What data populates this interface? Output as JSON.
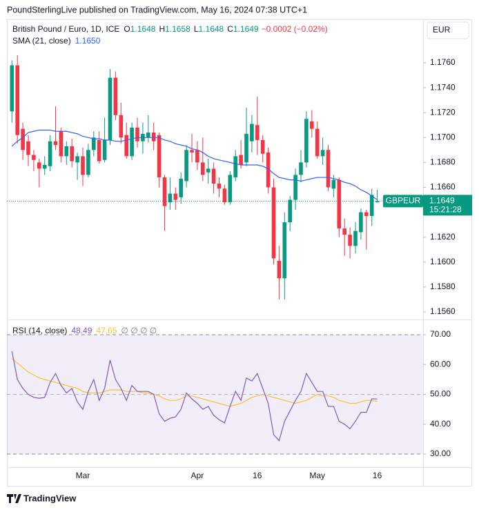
{
  "header": {
    "publisher": "PoundSterlingLive published on TradingView.com, May 16, 2024 07:38 UTC+1"
  },
  "footer": {
    "brand": "TradingView"
  },
  "chart_data": [
    {
      "type": "candlestick",
      "title": "British Pound / Euro, 1D, ICE",
      "ohlc_legend": [
        {
          "key": "O",
          "value": "1.1648"
        },
        {
          "key": "H",
          "value": "1.1658"
        },
        {
          "key": "L",
          "value": "1.1648"
        },
        {
          "key": "C",
          "value": "1.1649"
        }
      ],
      "change": "−0.0002 (−0.02%)",
      "currency": "EUR",
      "last_price_tag": {
        "symbol": "GBPEUR",
        "price": "1.1649",
        "countdown": "15:21:28"
      },
      "categories": [
        null,
        null,
        null,
        null,
        null,
        null,
        null,
        null,
        null,
        null,
        null,
        null,
        null,
        "Mar",
        null,
        null,
        null,
        null,
        null,
        null,
        null,
        null,
        null,
        null,
        null,
        null,
        null,
        null,
        null,
        null,
        null,
        null,
        null,
        null,
        "Apr",
        null,
        null,
        null,
        null,
        null,
        null,
        null,
        null,
        null,
        null,
        "16",
        null,
        null,
        null,
        null,
        null,
        null,
        null,
        null,
        null,
        null,
        "May",
        null,
        null,
        null,
        null,
        null,
        null,
        null,
        null,
        null,
        null,
        "16"
      ],
      "open": [
        1.1721,
        1.1758,
        1.1707,
        1.1697,
        1.1686,
        1.168,
        1.1675,
        1.1677,
        1.1697,
        1.1705,
        1.1685,
        1.1693,
        1.168,
        1.1685,
        1.167,
        1.169,
        1.1698,
        1.1682,
        1.1698,
        1.1748,
        1.1718,
        1.1702,
        1.1685,
        1.1708,
        1.1697,
        1.17,
        1.1704,
        1.1702,
        1.1668,
        1.1648,
        1.1655,
        1.1652,
        1.1665,
        1.169,
        1.169,
        1.168,
        1.1672,
        1.1675,
        1.1663,
        1.1659,
        1.1648,
        1.1668,
        1.1686,
        1.168,
        1.1697,
        1.171,
        1.1698,
        1.1688,
        1.166,
        1.1601,
        1.1587,
        1.1632,
        1.165,
        1.167,
        1.168,
        1.1713,
        1.1707,
        1.1685,
        1.169,
        1.1659,
        1.1666,
        1.1627,
        1.1622,
        1.1613,
        1.1624,
        1.164,
        1.1637,
        1.1648
      ],
      "high": [
        1.1762,
        1.1766,
        1.1712,
        1.1702,
        1.169,
        1.1683,
        1.1685,
        1.1702,
        1.1725,
        1.1708,
        1.1697,
        1.1699,
        1.1688,
        1.1692,
        1.1695,
        1.1705,
        1.1705,
        1.1716,
        1.1755,
        1.1753,
        1.1728,
        1.1712,
        1.1712,
        1.1716,
        1.1712,
        1.1718,
        1.1712,
        1.1704,
        1.167,
        1.1668,
        1.166,
        1.1672,
        1.1694,
        1.1703,
        1.1697,
        1.17,
        1.1683,
        1.168,
        1.1668,
        1.1662,
        1.1673,
        1.169,
        1.1698,
        1.1724,
        1.1718,
        1.1733,
        1.1702,
        1.1692,
        1.1667,
        1.1613,
        1.164,
        1.1653,
        1.1675,
        1.169,
        1.1721,
        1.1722,
        1.1713,
        1.17,
        1.1694,
        1.167,
        1.1668,
        1.1635,
        1.1628,
        1.1632,
        1.1643,
        1.1642,
        1.1659,
        1.1658
      ],
      "low": [
        1.1712,
        1.1695,
        1.1682,
        1.1677,
        1.1673,
        1.166,
        1.167,
        1.1673,
        1.169,
        1.168,
        1.1678,
        1.1676,
        1.1666,
        1.1661,
        1.1668,
        1.1685,
        1.1679,
        1.168,
        1.1694,
        1.1714,
        1.1695,
        1.1683,
        1.1682,
        1.1692,
        1.1687,
        1.1696,
        1.169,
        1.166,
        1.1625,
        1.1642,
        1.1642,
        1.1647,
        1.166,
        1.168,
        1.1674,
        1.1665,
        1.1663,
        1.1655,
        1.1652,
        1.1646,
        1.1646,
        1.1665,
        1.1675,
        1.1677,
        1.1688,
        1.1686,
        1.168,
        1.1655,
        1.1598,
        1.157,
        1.157,
        1.1625,
        1.1642,
        1.1664,
        1.1676,
        1.17,
        1.1683,
        1.1678,
        1.1657,
        1.1652,
        1.162,
        1.1605,
        1.1603,
        1.1607,
        1.1618,
        1.161,
        1.1629,
        1.1648
      ],
      "close": [
        1.1758,
        1.1702,
        1.169,
        1.1686,
        1.1682,
        1.1675,
        1.1678,
        1.1697,
        1.1694,
        1.1685,
        1.1693,
        1.1681,
        1.1685,
        1.167,
        1.169,
        1.17,
        1.1681,
        1.1698,
        1.1748,
        1.1718,
        1.17,
        1.1685,
        1.1708,
        1.1697,
        1.1703,
        1.1704,
        1.1697,
        1.1668,
        1.1645,
        1.1655,
        1.165,
        1.1667,
        1.169,
        1.1688,
        1.168,
        1.167,
        1.1675,
        1.1663,
        1.1659,
        1.1648,
        1.167,
        1.1685,
        1.1678,
        1.1703,
        1.1711,
        1.1698,
        1.1687,
        1.166,
        1.1603,
        1.1587,
        1.1632,
        1.165,
        1.167,
        1.168,
        1.1715,
        1.1707,
        1.1685,
        1.169,
        1.166,
        1.1666,
        1.1627,
        1.1622,
        1.1613,
        1.1625,
        1.164,
        1.1637,
        1.1654,
        1.1649
      ],
      "up_color": "#089981",
      "down_color": "#f23645",
      "series": [
        {
          "name": "SMA (21, close)",
          "color": "#2962ff",
          "value_label": "1.1650",
          "values": [
            1.1693,
            1.1697,
            1.17,
            1.1704,
            1.1705,
            1.1706,
            1.1706,
            1.1706,
            1.1705,
            1.1705,
            1.1705,
            1.1704,
            1.1703,
            1.1701,
            1.17,
            1.1699,
            1.1699,
            1.1698,
            1.1698,
            1.1697,
            1.1697,
            1.1698,
            1.1699,
            1.17,
            1.17,
            1.17,
            1.17,
            1.17,
            1.1698,
            1.1697,
            1.1695,
            1.1694,
            1.1693,
            1.1691,
            1.169,
            1.1688,
            1.1685,
            1.1683,
            1.1682,
            1.1681,
            1.168,
            1.1679,
            1.1678,
            1.1678,
            1.1678,
            1.1678,
            1.1677,
            1.1675,
            1.1671,
            1.1668,
            1.1667,
            1.1666,
            1.1666,
            1.1665,
            1.1666,
            1.1667,
            1.1668,
            1.1668,
            1.1668,
            1.1667,
            1.1666,
            1.1664,
            1.1663,
            1.1661,
            1.1658,
            1.1656,
            1.1653,
            1.165
          ]
        }
      ],
      "ylim": [
        1.15539,
        1.17949
      ],
      "yticks": [
        {
          "value": 1.156,
          "label": "1.1560"
        },
        {
          "value": 1.158,
          "label": "1.1580"
        },
        {
          "value": 1.16,
          "label": "1.1600"
        },
        {
          "value": 1.162,
          "label": "1.1620"
        },
        {
          "value": 1.164,
          "label": "1.1640"
        },
        {
          "value": 1.166,
          "label": "1.1660"
        },
        {
          "value": 1.168,
          "label": "1.1680"
        },
        {
          "value": 1.17,
          "label": "1.1700"
        },
        {
          "value": 1.172,
          "label": "1.1720"
        },
        {
          "value": 1.174,
          "label": "1.1740"
        },
        {
          "value": 1.176,
          "label": "1.1760"
        }
      ]
    },
    {
      "type": "line",
      "title": "RSI (14, close)",
      "empty_values": "∅ ∅ ∅ ∅",
      "series": [
        {
          "color": "#7e57c2",
          "value_label": "48.49",
          "values": [
            64.5,
            55,
            52,
            50,
            49,
            48.7,
            49,
            54,
            57,
            53,
            50.5,
            52,
            47.5,
            45,
            51,
            55,
            48,
            52,
            61.5,
            55,
            52,
            48,
            53,
            51,
            51,
            51,
            50,
            43.5,
            41,
            42,
            42.5,
            45,
            50.5,
            48.5,
            47,
            45,
            46,
            43,
            41.5,
            40.5,
            46,
            51,
            48,
            55.5,
            54.5,
            57,
            52,
            47,
            36.5,
            34.5,
            41,
            44.5,
            48,
            51,
            57,
            54,
            51,
            51,
            46,
            46,
            41,
            40,
            38.5,
            41,
            44,
            44,
            48.5,
            48.49
          ]
        },
        {
          "color": "#fbc02d",
          "value_label": "47.65",
          "values": [
            62,
            60.5,
            59,
            57.5,
            56.5,
            55.5,
            55,
            54.5,
            54,
            53.5,
            53,
            52.5,
            52,
            51,
            50.5,
            50.5,
            50.5,
            51,
            51.5,
            51.5,
            51.5,
            51,
            51,
            51,
            50.5,
            50.5,
            50,
            49.5,
            48.5,
            48,
            48,
            48.5,
            49.5,
            49.5,
            49,
            48.5,
            48,
            47.5,
            47,
            46.5,
            46,
            46.5,
            47,
            48,
            49,
            49.5,
            50,
            49.5,
            49,
            48.5,
            48,
            47.5,
            47,
            47.5,
            48,
            49,
            50,
            49.5,
            49.5,
            49,
            48,
            47.5,
            47,
            47,
            47.5,
            48,
            48,
            47.65
          ]
        }
      ],
      "band": {
        "upper": 70,
        "middle": 50,
        "lower": 30,
        "color": "#7e57c2"
      },
      "ylim": [
        25.61,
        75.09
      ],
      "yticks": [
        {
          "value": 30,
          "label": "30.00"
        },
        {
          "value": 40,
          "label": "40.00"
        },
        {
          "value": 50,
          "label": "50.00"
        },
        {
          "value": 60,
          "label": "60.00"
        },
        {
          "value": 70,
          "label": "70.00"
        }
      ]
    }
  ]
}
